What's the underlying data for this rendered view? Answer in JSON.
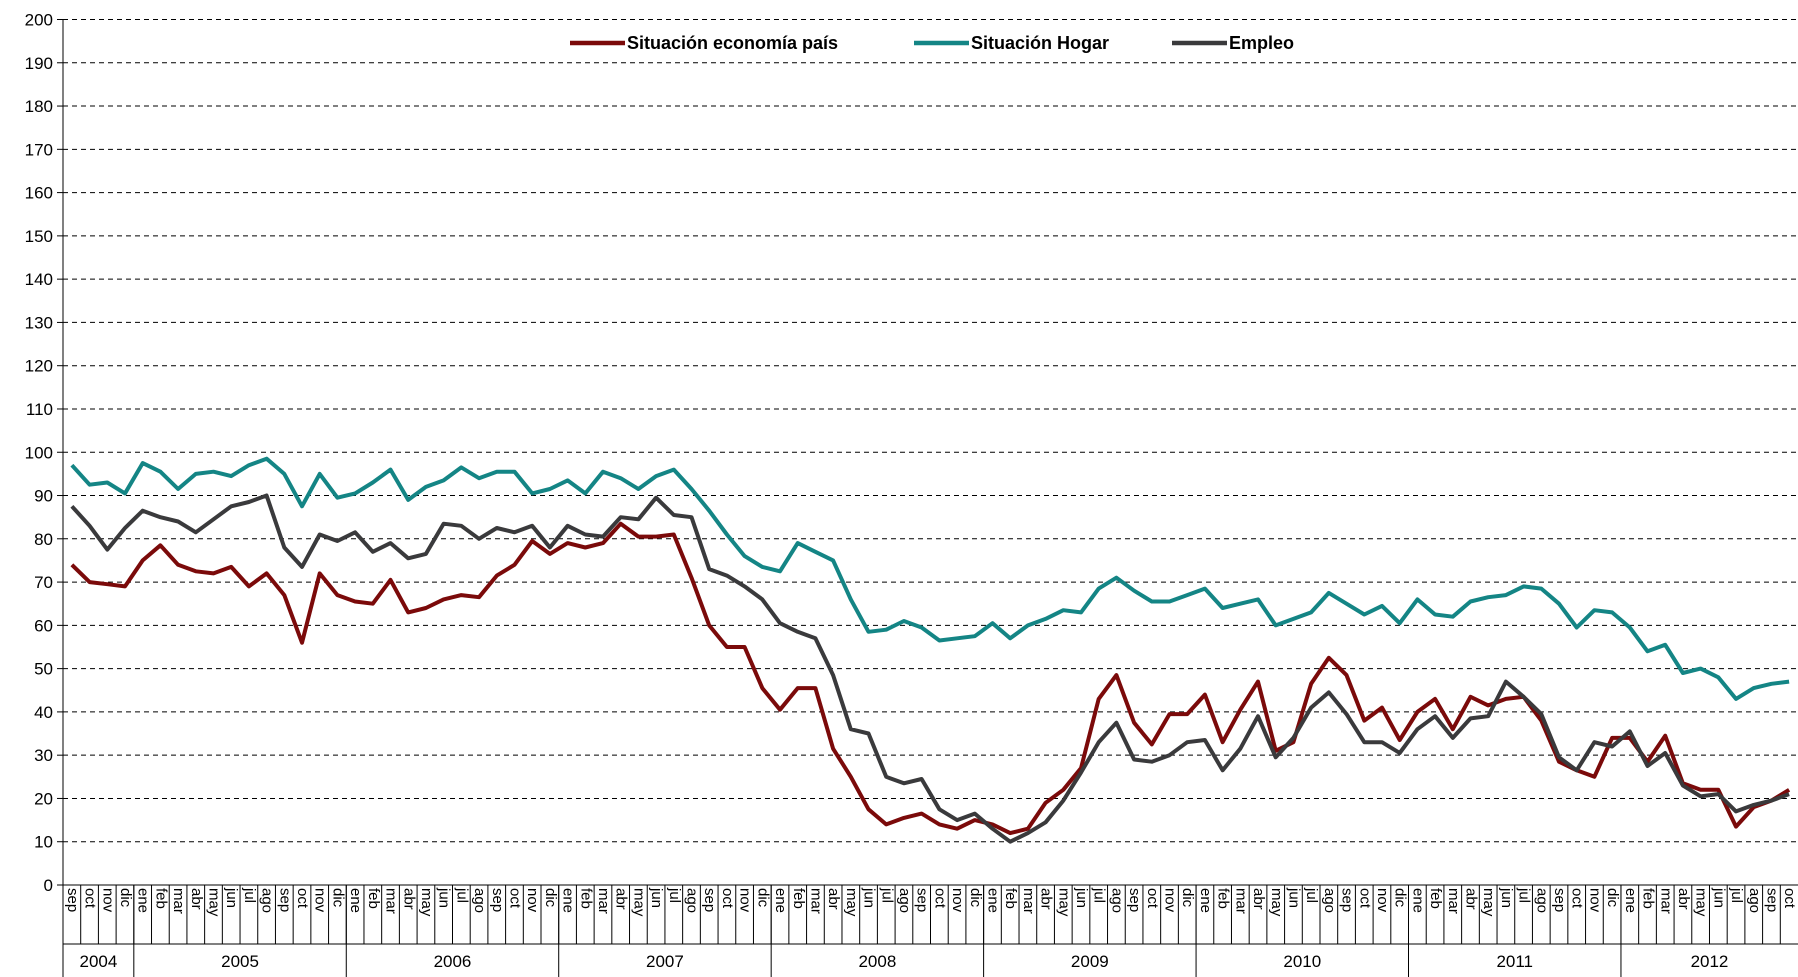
{
  "chart_data": {
    "type": "line",
    "categories": [
      "sep",
      "oct",
      "nov",
      "dic",
      "ene",
      "feb",
      "mar",
      "abr",
      "may",
      "jun",
      "jul",
      "ago",
      "sep",
      "oct",
      "nov",
      "dic",
      "ene",
      "feb",
      "mar",
      "abr",
      "may",
      "jun",
      "jul",
      "ago",
      "sep",
      "oct",
      "nov",
      "dic",
      "ene",
      "feb",
      "mar",
      "abr",
      "may",
      "jun",
      "jul",
      "ago",
      "sep",
      "oct",
      "nov",
      "dic",
      "ene",
      "feb",
      "mar",
      "abr",
      "may",
      "jun",
      "jul",
      "ago",
      "sep",
      "oct",
      "nov",
      "dic",
      "ene",
      "feb",
      "mar",
      "abr",
      "may",
      "jun",
      "jul",
      "ago",
      "sep",
      "oct",
      "nov",
      "dic",
      "ene",
      "feb",
      "mar",
      "abr",
      "may",
      "jun",
      "jul",
      "ago",
      "sep",
      "oct",
      "nov",
      "dic",
      "ene",
      "feb",
      "mar",
      "abr",
      "may",
      "jun",
      "jul",
      "ago",
      "sep",
      "oct",
      "nov",
      "dic",
      "ene",
      "feb",
      "mar",
      "abr",
      "may",
      "jun",
      "jul",
      "ago",
      "sep",
      "oct"
    ],
    "x_groups": [
      {
        "label": "2004",
        "span": 4
      },
      {
        "label": "2005",
        "span": 12
      },
      {
        "label": "2006",
        "span": 12
      },
      {
        "label": "2007",
        "span": 12
      },
      {
        "label": "2008",
        "span": 12
      },
      {
        "label": "2009",
        "span": 12
      },
      {
        "label": "2010",
        "span": 12
      },
      {
        "label": "2011",
        "span": 12
      },
      {
        "label": "2012",
        "span": 10
      }
    ],
    "series": [
      {
        "name": "Situación economía país",
        "color": "#7b0a0a",
        "values": [
          74,
          70,
          69.5,
          69,
          75,
          78.5,
          74,
          72.5,
          72,
          73.5,
          69,
          72,
          67,
          56,
          72,
          67,
          65.5,
          65,
          70.5,
          63,
          64,
          66,
          67,
          66.5,
          71.5,
          74,
          79.5,
          76.5,
          79,
          78,
          79,
          83.5,
          80.5,
          80.5,
          81,
          71,
          60,
          55,
          55,
          45.5,
          40.5,
          45.5,
          45.5,
          31.5,
          25,
          17.5,
          14,
          15.5,
          16.5,
          14,
          13,
          15,
          14,
          12,
          13,
          19,
          22,
          27,
          43,
          48.5,
          37.5,
          32.5,
          39.5,
          39.5,
          44,
          33,
          40.5,
          47,
          31,
          33,
          46.5,
          52.5,
          48.5,
          38,
          41,
          33.5,
          40,
          43,
          36,
          43.5,
          41.5,
          43,
          43.5,
          38,
          28.5,
          26.5,
          25,
          34,
          34,
          28.5,
          34.5,
          23.5,
          22,
          22,
          13.5,
          18,
          19.5,
          22
        ]
      },
      {
        "name": "Situación Hogar",
        "color": "#148585",
        "values": [
          97,
          92.5,
          93,
          90.5,
          97.5,
          95.5,
          91.5,
          95,
          95.5,
          94.5,
          97,
          98.5,
          95,
          87.5,
          95,
          89.5,
          90.5,
          93,
          96,
          89,
          92,
          93.5,
          96.5,
          94,
          95.5,
          95.5,
          90.5,
          91.5,
          93.5,
          90.5,
          95.5,
          94,
          91.5,
          94.5,
          96,
          91.5,
          86.5,
          81,
          76,
          73.5,
          72.5,
          79,
          77,
          75,
          66,
          58.5,
          59,
          61,
          59.5,
          56.5,
          57,
          57.5,
          60.5,
          57,
          60,
          61.5,
          63.5,
          63,
          68.5,
          71,
          68,
          65.5,
          65.5,
          67,
          68.5,
          64,
          65,
          66,
          60,
          61.5,
          63,
          67.5,
          65,
          62.5,
          64.5,
          60.5,
          66,
          62.5,
          62,
          65.5,
          66.5,
          67,
          69,
          68.5,
          65,
          59.5,
          63.5,
          63,
          59.5,
          54,
          55.5,
          49,
          50,
          48,
          43,
          45.5,
          46.5,
          47
        ]
      },
      {
        "name": "Empleo",
        "color": "#3a3a3c",
        "values": [
          87.5,
          83,
          77.5,
          82.5,
          86.5,
          85,
          84,
          81.5,
          84.5,
          87.5,
          88.5,
          90,
          78,
          73.5,
          81,
          79.5,
          81.5,
          77,
          79,
          75.5,
          76.5,
          83.5,
          83,
          80,
          82.5,
          81.5,
          83,
          78,
          83,
          81,
          80.5,
          85,
          84.5,
          89.5,
          85.5,
          85,
          73,
          71.5,
          69,
          66,
          60.5,
          58.5,
          57,
          48.5,
          36,
          35,
          25,
          23.5,
          24.5,
          17.5,
          15,
          16.5,
          13,
          10,
          12,
          14.5,
          19.5,
          26,
          33,
          37.5,
          29,
          28.5,
          30,
          33,
          33.5,
          26.5,
          31.5,
          39,
          29.5,
          34,
          41,
          44.5,
          39.5,
          33,
          33,
          30.5,
          36,
          39,
          34,
          38.5,
          39,
          47,
          43.5,
          39.5,
          29.5,
          26.5,
          33,
          32,
          35.5,
          27.5,
          30.5,
          23,
          20.5,
          21,
          17,
          18.5,
          19.5,
          21
        ]
      }
    ],
    "ylim": [
      0,
      200
    ],
    "yticks": [
      0,
      10,
      20,
      30,
      40,
      50,
      60,
      70,
      80,
      90,
      100,
      110,
      120,
      130,
      140,
      150,
      160,
      170,
      180,
      190,
      200
    ],
    "grid": true,
    "legend": "top"
  }
}
